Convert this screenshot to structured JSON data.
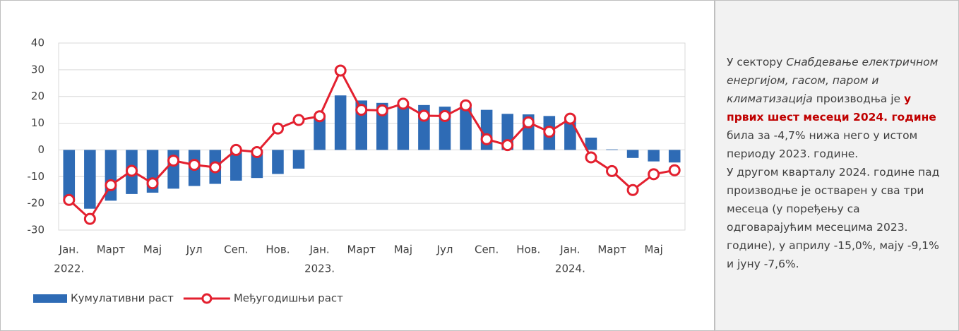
{
  "chart_data": {
    "type": "bar_line",
    "categories": [
      "Јан.",
      null,
      "Март",
      null,
      "Мај",
      null,
      "Јул",
      null,
      "Сеп.",
      null,
      "Нов.",
      null,
      "Јан.",
      null,
      "Март",
      null,
      "Мај",
      null,
      "Јул",
      null,
      "Сеп.",
      null,
      "Нов.",
      null,
      "Јан.",
      null,
      "Март",
      null,
      "Мај",
      null
    ],
    "years": [
      "2022.",
      "2023.",
      "2024."
    ],
    "series": [
      {
        "name": "Кумулативни раст",
        "type": "bar",
        "color": "#2e6bb5",
        "values": [
          -18.5,
          -22,
          -19,
          -16.5,
          -16,
          -14.5,
          -13.5,
          -12.7,
          -11.5,
          -10.5,
          -9,
          -7,
          12.7,
          20.4,
          18.5,
          17.6,
          17.2,
          16.8,
          16.2,
          16,
          15,
          13.5,
          13.3,
          12.7,
          12,
          4.6,
          0.2,
          -3,
          -4.3,
          -4.7
        ]
      },
      {
        "name": "Међугодишњи  раст",
        "type": "line",
        "color": "#e3202f",
        "values": [
          -18.7,
          -25.8,
          -13.2,
          -7.8,
          -12.5,
          -4,
          -5.6,
          -6.5,
          0,
          -0.8,
          8,
          11.2,
          12.6,
          29.7,
          15,
          14.8,
          17.3,
          12.8,
          12.7,
          16.7,
          4,
          1.8,
          10.3,
          6.8,
          11.7,
          -2.8,
          -7.9,
          -15,
          -9.1,
          -7.6
        ]
      }
    ],
    "ylim": [
      -30,
      40
    ],
    "yticks": [
      -30,
      -20,
      -10,
      0,
      10,
      20,
      30,
      40
    ],
    "grid": true,
    "legend": "bottom-left"
  },
  "panel": {
    "paragraphs": [
      [
        "У сектору ",
        "Снабдевање електричном енергијом, гасом, паром и климатизација",
        " производња је ",
        "у првих шест месеци 2024. године",
        " била за -4,7% нижа него у истом периоду 2023. године."
      ],
      [
        "У другом кварталу 2024. године пад производње је остварен у сва три месеца (у поређењу са одговарајућим месецима 2023. године), у априлу  -15,0%, мају -9,1% и јуну -7,6%."
      ]
    ]
  }
}
